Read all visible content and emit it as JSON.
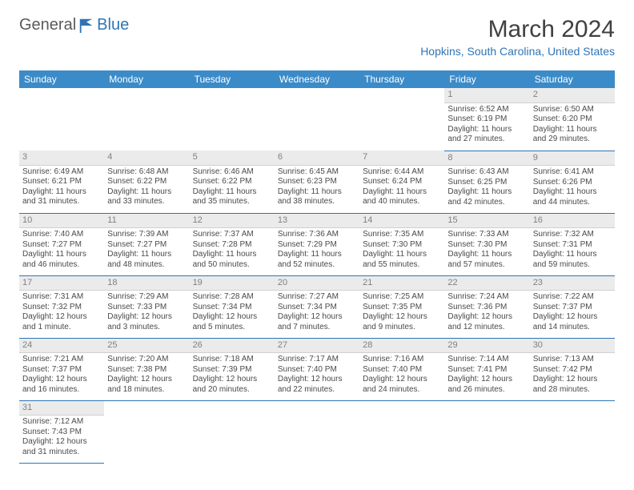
{
  "logo": {
    "text1": "General",
    "text2": "Blue"
  },
  "header": {
    "title": "March 2024",
    "location": "Hopkins, South Carolina, United States"
  },
  "colors": {
    "header_bg": "#3b8bc9",
    "accent": "#2e75b6",
    "day_num_bg": "#ebebeb",
    "border": "#2e75b6"
  },
  "dayNames": [
    "Sunday",
    "Monday",
    "Tuesday",
    "Wednesday",
    "Thursday",
    "Friday",
    "Saturday"
  ],
  "weeks": [
    [
      {
        "n": "",
        "lines": []
      },
      {
        "n": "",
        "lines": []
      },
      {
        "n": "",
        "lines": []
      },
      {
        "n": "",
        "lines": []
      },
      {
        "n": "",
        "lines": []
      },
      {
        "n": "1",
        "lines": [
          "Sunrise: 6:52 AM",
          "Sunset: 6:19 PM",
          "Daylight: 11 hours",
          "and 27 minutes."
        ]
      },
      {
        "n": "2",
        "lines": [
          "Sunrise: 6:50 AM",
          "Sunset: 6:20 PM",
          "Daylight: 11 hours",
          "and 29 minutes."
        ]
      }
    ],
    [
      {
        "n": "3",
        "lines": [
          "Sunrise: 6:49 AM",
          "Sunset: 6:21 PM",
          "Daylight: 11 hours",
          "and 31 minutes."
        ]
      },
      {
        "n": "4",
        "lines": [
          "Sunrise: 6:48 AM",
          "Sunset: 6:22 PM",
          "Daylight: 11 hours",
          "and 33 minutes."
        ]
      },
      {
        "n": "5",
        "lines": [
          "Sunrise: 6:46 AM",
          "Sunset: 6:22 PM",
          "Daylight: 11 hours",
          "and 35 minutes."
        ]
      },
      {
        "n": "6",
        "lines": [
          "Sunrise: 6:45 AM",
          "Sunset: 6:23 PM",
          "Daylight: 11 hours",
          "and 38 minutes."
        ]
      },
      {
        "n": "7",
        "lines": [
          "Sunrise: 6:44 AM",
          "Sunset: 6:24 PM",
          "Daylight: 11 hours",
          "and 40 minutes."
        ]
      },
      {
        "n": "8",
        "lines": [
          "Sunrise: 6:43 AM",
          "Sunset: 6:25 PM",
          "Daylight: 11 hours",
          "and 42 minutes."
        ]
      },
      {
        "n": "9",
        "lines": [
          "Sunrise: 6:41 AM",
          "Sunset: 6:26 PM",
          "Daylight: 11 hours",
          "and 44 minutes."
        ]
      }
    ],
    [
      {
        "n": "10",
        "lines": [
          "Sunrise: 7:40 AM",
          "Sunset: 7:27 PM",
          "Daylight: 11 hours",
          "and 46 minutes."
        ]
      },
      {
        "n": "11",
        "lines": [
          "Sunrise: 7:39 AM",
          "Sunset: 7:27 PM",
          "Daylight: 11 hours",
          "and 48 minutes."
        ]
      },
      {
        "n": "12",
        "lines": [
          "Sunrise: 7:37 AM",
          "Sunset: 7:28 PM",
          "Daylight: 11 hours",
          "and 50 minutes."
        ]
      },
      {
        "n": "13",
        "lines": [
          "Sunrise: 7:36 AM",
          "Sunset: 7:29 PM",
          "Daylight: 11 hours",
          "and 52 minutes."
        ]
      },
      {
        "n": "14",
        "lines": [
          "Sunrise: 7:35 AM",
          "Sunset: 7:30 PM",
          "Daylight: 11 hours",
          "and 55 minutes."
        ]
      },
      {
        "n": "15",
        "lines": [
          "Sunrise: 7:33 AM",
          "Sunset: 7:30 PM",
          "Daylight: 11 hours",
          "and 57 minutes."
        ]
      },
      {
        "n": "16",
        "lines": [
          "Sunrise: 7:32 AM",
          "Sunset: 7:31 PM",
          "Daylight: 11 hours",
          "and 59 minutes."
        ]
      }
    ],
    [
      {
        "n": "17",
        "lines": [
          "Sunrise: 7:31 AM",
          "Sunset: 7:32 PM",
          "Daylight: 12 hours",
          "and 1 minute."
        ]
      },
      {
        "n": "18",
        "lines": [
          "Sunrise: 7:29 AM",
          "Sunset: 7:33 PM",
          "Daylight: 12 hours",
          "and 3 minutes."
        ]
      },
      {
        "n": "19",
        "lines": [
          "Sunrise: 7:28 AM",
          "Sunset: 7:34 PM",
          "Daylight: 12 hours",
          "and 5 minutes."
        ]
      },
      {
        "n": "20",
        "lines": [
          "Sunrise: 7:27 AM",
          "Sunset: 7:34 PM",
          "Daylight: 12 hours",
          "and 7 minutes."
        ]
      },
      {
        "n": "21",
        "lines": [
          "Sunrise: 7:25 AM",
          "Sunset: 7:35 PM",
          "Daylight: 12 hours",
          "and 9 minutes."
        ]
      },
      {
        "n": "22",
        "lines": [
          "Sunrise: 7:24 AM",
          "Sunset: 7:36 PM",
          "Daylight: 12 hours",
          "and 12 minutes."
        ]
      },
      {
        "n": "23",
        "lines": [
          "Sunrise: 7:22 AM",
          "Sunset: 7:37 PM",
          "Daylight: 12 hours",
          "and 14 minutes."
        ]
      }
    ],
    [
      {
        "n": "24",
        "lines": [
          "Sunrise: 7:21 AM",
          "Sunset: 7:37 PM",
          "Daylight: 12 hours",
          "and 16 minutes."
        ]
      },
      {
        "n": "25",
        "lines": [
          "Sunrise: 7:20 AM",
          "Sunset: 7:38 PM",
          "Daylight: 12 hours",
          "and 18 minutes."
        ]
      },
      {
        "n": "26",
        "lines": [
          "Sunrise: 7:18 AM",
          "Sunset: 7:39 PM",
          "Daylight: 12 hours",
          "and 20 minutes."
        ]
      },
      {
        "n": "27",
        "lines": [
          "Sunrise: 7:17 AM",
          "Sunset: 7:40 PM",
          "Daylight: 12 hours",
          "and 22 minutes."
        ]
      },
      {
        "n": "28",
        "lines": [
          "Sunrise: 7:16 AM",
          "Sunset: 7:40 PM",
          "Daylight: 12 hours",
          "and 24 minutes."
        ]
      },
      {
        "n": "29",
        "lines": [
          "Sunrise: 7:14 AM",
          "Sunset: 7:41 PM",
          "Daylight: 12 hours",
          "and 26 minutes."
        ]
      },
      {
        "n": "30",
        "lines": [
          "Sunrise: 7:13 AM",
          "Sunset: 7:42 PM",
          "Daylight: 12 hours",
          "and 28 minutes."
        ]
      }
    ],
    [
      {
        "n": "31",
        "lines": [
          "Sunrise: 7:12 AM",
          "Sunset: 7:43 PM",
          "Daylight: 12 hours",
          "and 31 minutes."
        ]
      },
      {
        "n": "",
        "lines": []
      },
      {
        "n": "",
        "lines": []
      },
      {
        "n": "",
        "lines": []
      },
      {
        "n": "",
        "lines": []
      },
      {
        "n": "",
        "lines": []
      },
      {
        "n": "",
        "lines": []
      }
    ]
  ]
}
